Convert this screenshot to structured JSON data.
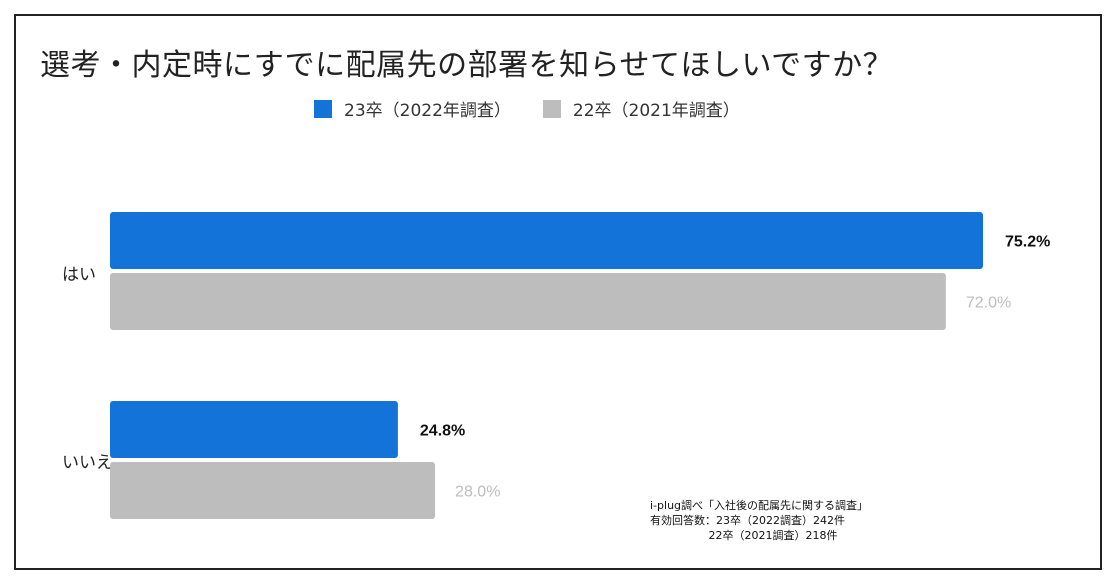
{
  "chart_data": {
    "type": "bar",
    "orientation": "horizontal",
    "title": "選考・内定時にすでに配属先の部署を知らせてほしいですか？",
    "categories": [
      "はい",
      "いいえ"
    ],
    "series": [
      {
        "name": "23卒（2022年調査）",
        "color": "#1473D8",
        "values": [
          75.2,
          24.8
        ],
        "labels": [
          "75.2%",
          "24.8%"
        ]
      },
      {
        "name": "22卒（2021年調査）",
        "color": "#BDBDBD",
        "values": [
          72.0,
          28.0
        ],
        "labels": [
          "72.0%",
          "28.0%"
        ]
      }
    ],
    "xlim": [
      0,
      100
    ],
    "xlabel": "",
    "ylabel": "",
    "grid": false,
    "legend_position": "top-center"
  },
  "source": {
    "line1": "i-plug調べ「入社後の配属先に関する調査」",
    "line2": "有効回答数：23卒（2022調査）242件",
    "line3": "　　　　　 22卒（2021調査）218件"
  },
  "colors": {
    "series1": "#1473D8",
    "series2": "#BDBDBD",
    "label_strong": "#111111",
    "label_muted": "#BDBDBD"
  }
}
